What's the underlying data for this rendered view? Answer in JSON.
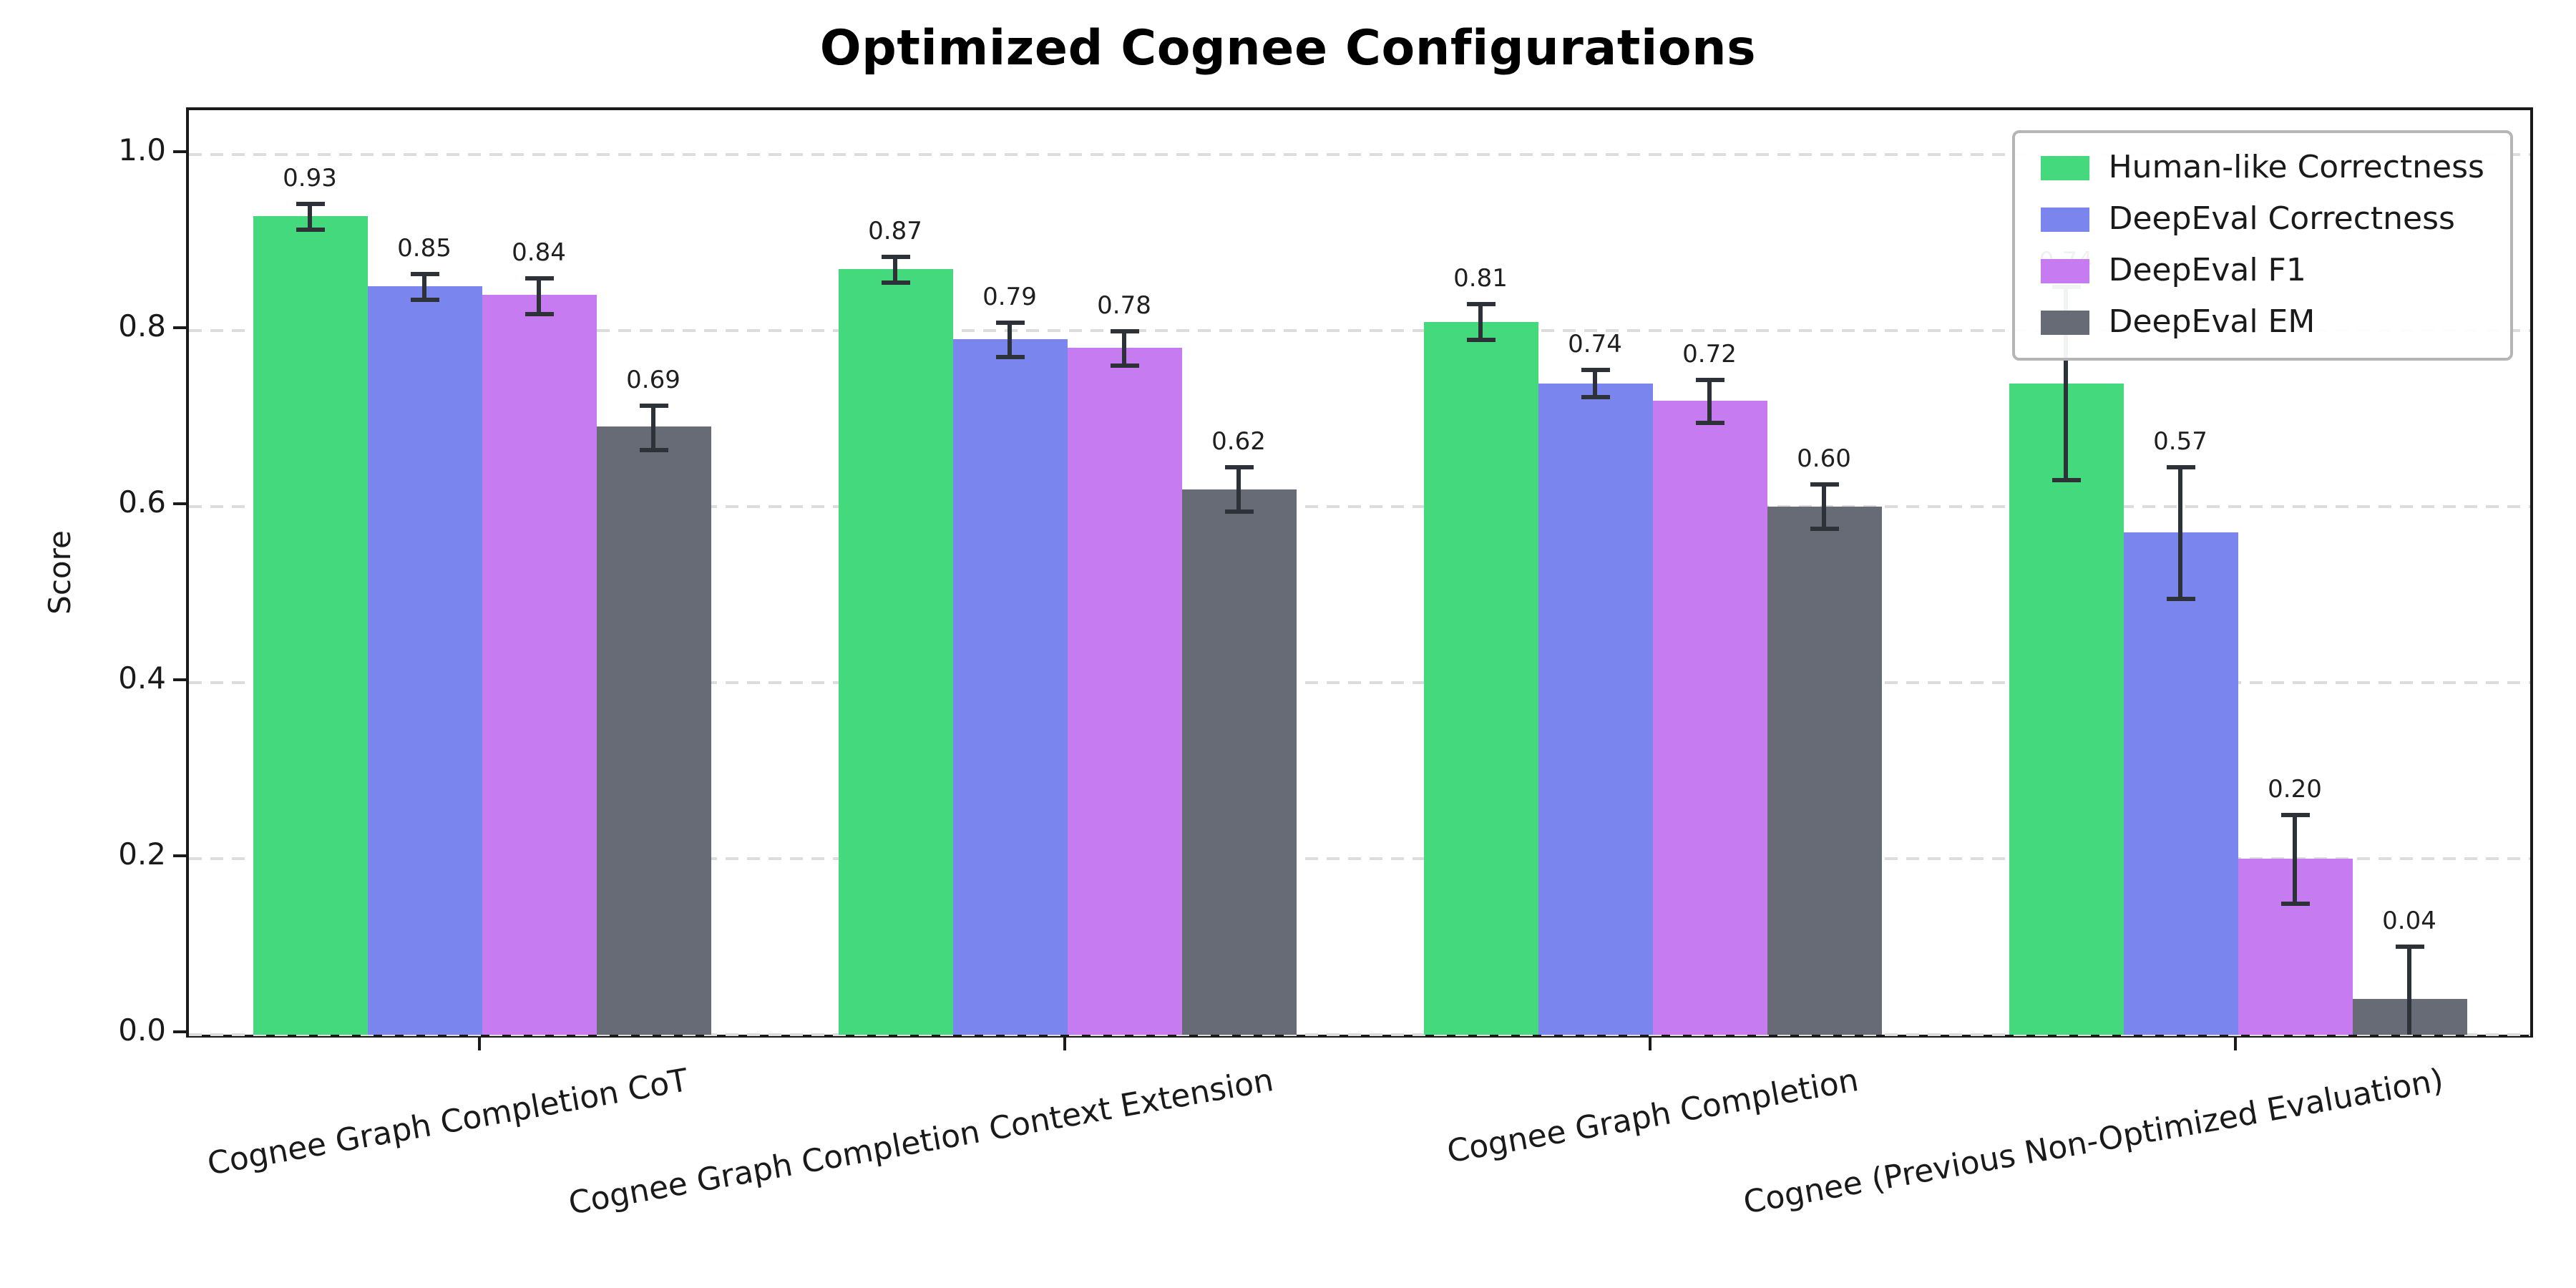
{
  "chart_data": {
    "type": "bar",
    "title": "Optimized Cognee Configurations",
    "xlabel": "",
    "ylabel": "Score",
    "ylim": [
      0,
      1.05
    ],
    "yticks": [
      0.0,
      0.2,
      0.4,
      0.6,
      0.8,
      1.0
    ],
    "grid": "horizontal-dashed",
    "legend_position": "upper-right",
    "error_bars": true,
    "categories": [
      "Cognee Graph Completion CoT",
      "Cognee Graph Completion Context Extension",
      "Cognee Graph Completion",
      "Cognee (Previous Non-Optimized Evaluation)"
    ],
    "series": [
      {
        "name": "Human-like Correctness",
        "color": "#44d97d",
        "values": [
          0.93,
          0.87,
          0.81,
          0.74
        ],
        "errors": [
          0.015,
          0.015,
          0.02,
          0.11
        ]
      },
      {
        "name": "DeepEval Correctness",
        "color": "#7b85ee",
        "values": [
          0.85,
          0.79,
          0.74,
          0.57
        ],
        "errors": [
          0.015,
          0.02,
          0.015,
          0.075
        ]
      },
      {
        "name": "DeepEval F1",
        "color": "#c67bf0",
        "values": [
          0.84,
          0.78,
          0.72,
          0.2
        ],
        "errors": [
          0.02,
          0.02,
          0.025,
          0.05
        ]
      },
      {
        "name": "DeepEval EM",
        "color": "#666b75",
        "values": [
          0.69,
          0.62,
          0.6,
          0.04
        ],
        "errors": [
          0.025,
          0.025,
          0.025,
          0.06
        ]
      }
    ],
    "value_label_format": "0.00"
  }
}
